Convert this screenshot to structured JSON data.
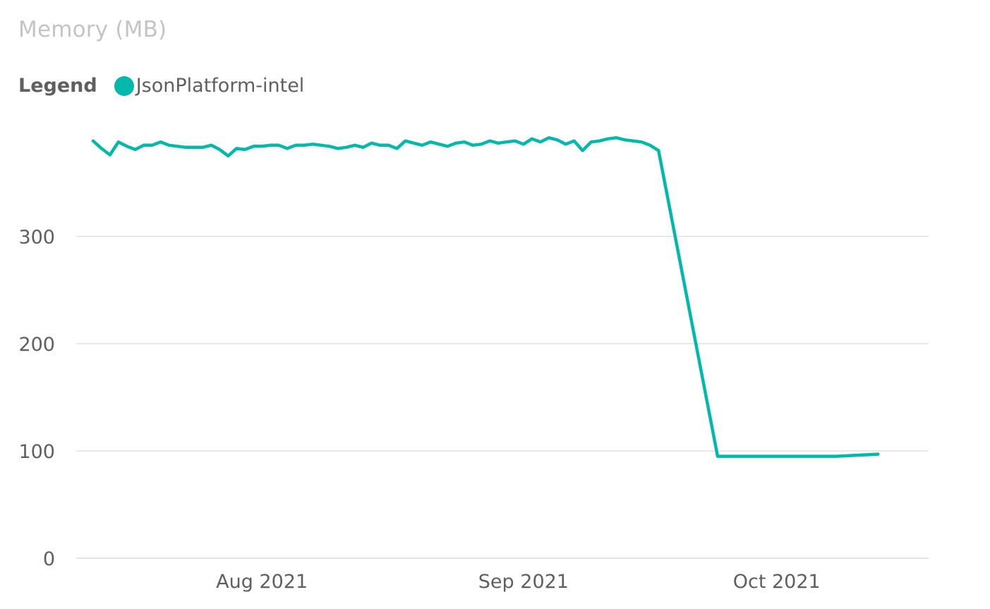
{
  "chart_data": {
    "type": "line",
    "title": "Memory (MB)",
    "legend": {
      "heading": "Legend",
      "placement": "top-left"
    },
    "xlabel": "",
    "ylabel": "",
    "xlim": [
      "2021-07-10",
      "2021-10-19"
    ],
    "ylim": [
      0,
      400
    ],
    "grid": true,
    "x_ticks": [
      {
        "value": "2021-08-01",
        "label": "Aug 2021"
      },
      {
        "value": "2021-09-01",
        "label": "Sep 2021"
      },
      {
        "value": "2021-10-01",
        "label": "Oct 2021"
      }
    ],
    "y_ticks": [
      0,
      100,
      200,
      300
    ],
    "series": [
      {
        "name": "JsonPlatform-intel",
        "color": "#01B8AA",
        "x": [
          "2021-07-12",
          "2021-07-13",
          "2021-07-14",
          "2021-07-15",
          "2021-07-16",
          "2021-07-17",
          "2021-07-18",
          "2021-07-19",
          "2021-07-20",
          "2021-07-21",
          "2021-07-22",
          "2021-07-23",
          "2021-07-24",
          "2021-07-25",
          "2021-07-26",
          "2021-07-27",
          "2021-07-28",
          "2021-07-29",
          "2021-07-30",
          "2021-07-31",
          "2021-08-01",
          "2021-08-02",
          "2021-08-03",
          "2021-08-04",
          "2021-08-05",
          "2021-08-06",
          "2021-08-07",
          "2021-08-08",
          "2021-08-09",
          "2021-08-10",
          "2021-08-11",
          "2021-08-12",
          "2021-08-13",
          "2021-08-14",
          "2021-08-15",
          "2021-08-16",
          "2021-08-17",
          "2021-08-18",
          "2021-08-19",
          "2021-08-20",
          "2021-08-21",
          "2021-08-22",
          "2021-08-23",
          "2021-08-24",
          "2021-08-25",
          "2021-08-26",
          "2021-08-27",
          "2021-08-28",
          "2021-08-29",
          "2021-08-30",
          "2021-08-31",
          "2021-09-01",
          "2021-09-02",
          "2021-09-03",
          "2021-09-04",
          "2021-09-05",
          "2021-09-06",
          "2021-09-07",
          "2021-09-08",
          "2021-09-09",
          "2021-09-10",
          "2021-09-11",
          "2021-09-12",
          "2021-09-13",
          "2021-09-14",
          "2021-09-15",
          "2021-09-16",
          "2021-09-17",
          "2021-09-24",
          "2021-09-28",
          "2021-10-08",
          "2021-10-13"
        ],
        "values": [
          389,
          382,
          376,
          388,
          384,
          381,
          385,
          385,
          388,
          385,
          384,
          383,
          383,
          383,
          385,
          381,
          375,
          382,
          381,
          384,
          384,
          385,
          385,
          382,
          385,
          385,
          386,
          385,
          384,
          382,
          383,
          385,
          383,
          387,
          385,
          385,
          382,
          389,
          387,
          385,
          388,
          386,
          384,
          387,
          388,
          385,
          386,
          389,
          387,
          388,
          389,
          386,
          391,
          388,
          392,
          390,
          386,
          389,
          380,
          388,
          389,
          391,
          392,
          390,
          389,
          388,
          385,
          380,
          95,
          95,
          95,
          97
        ]
      }
    ]
  }
}
